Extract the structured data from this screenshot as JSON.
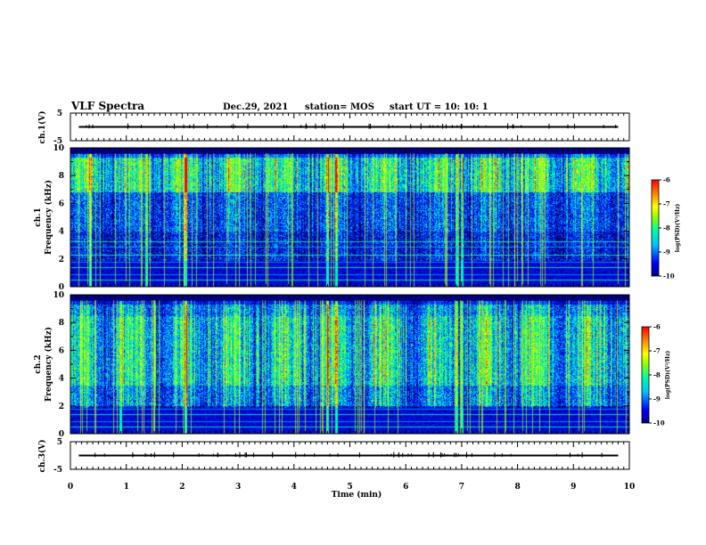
{
  "header": {
    "title": "VLF Spectra",
    "date": "Dec.29, 2021",
    "station": "station= MOS",
    "start": "start  UT =   10: 10: 1"
  },
  "chart_data": [
    {
      "id": "ch1_waveform",
      "type": "line",
      "ylabel": "ch.1(V)",
      "ylim": [
        -5,
        5
      ],
      "yticks": [
        "5",
        "-5"
      ],
      "xlim": [
        0,
        10
      ],
      "trace_level": 0
    },
    {
      "id": "ch1_spectrogram",
      "type": "heatmap",
      "ylabel": "Frequency  (kHz)",
      "channel_label": "ch.1",
      "ylim": [
        0,
        10
      ],
      "yticks": [
        "0",
        "2",
        "4",
        "6",
        "8",
        "10"
      ],
      "xlim": [
        0,
        10
      ],
      "colorbar": {
        "label": "log(PSD)(V²/Hz)",
        "range": [
          -10,
          -6
        ],
        "ticks": [
          "-6",
          "-7",
          "-8",
          "-9",
          "-10"
        ]
      },
      "spectral_lines_khz": [
        0.5,
        0.9,
        1.4,
        1.8,
        2.3,
        2.9,
        3.3
      ],
      "strong_bursts_min": [
        0.35,
        1.35,
        2.05,
        4.6,
        4.75,
        6.9,
        7.0
      ]
    },
    {
      "id": "ch2_spectrogram",
      "type": "heatmap",
      "ylabel": "Frequency  (kHz)",
      "channel_label": "ch.2",
      "ylim": [
        0,
        10
      ],
      "yticks": [
        "0",
        "2",
        "4",
        "6",
        "8",
        "10"
      ],
      "xlim": [
        0,
        10
      ],
      "colorbar": {
        "label": "log(PSD)(V²/Hz)",
        "range": [
          -10,
          -6
        ],
        "ticks": [
          "-6",
          "-7",
          "-8",
          "-9",
          "-10"
        ]
      },
      "spectral_lines_khz": [
        0.5,
        0.9,
        1.4,
        1.8
      ],
      "strong_bursts_min": [
        0.9,
        2.05,
        4.6,
        4.75,
        6.9,
        7.0
      ]
    },
    {
      "id": "ch3_waveform",
      "type": "line",
      "ylabel": "ch.3(V)",
      "ylim": [
        -5,
        5
      ],
      "yticks": [
        "5",
        "-5"
      ],
      "xlim": [
        0,
        10
      ],
      "trace_level": 0
    }
  ],
  "x_axis": {
    "label": "Time  (min)",
    "ticks": [
      "0",
      "1",
      "2",
      "3",
      "4",
      "5",
      "6",
      "7",
      "8",
      "9",
      "10"
    ]
  },
  "colors": {
    "colormap": [
      "#000080",
      "#0000ff",
      "#00c0ff",
      "#00ffa0",
      "#80ff00",
      "#ffff00",
      "#ff8000",
      "#ff0000"
    ],
    "background": "#000040"
  }
}
